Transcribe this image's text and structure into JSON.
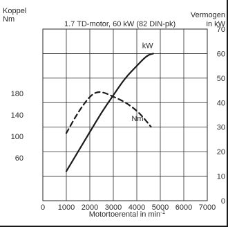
{
  "chart_data": {
    "type": "line",
    "title": "1.7 TD-motor, 60 kW (82 DIN-pk)",
    "left_axis_title": "Koppel",
    "left_axis_unit": "Nm",
    "right_axis_title": "Vermogen",
    "right_axis_unit": "in kW",
    "xlabel": "Motortoerental in min",
    "xlabel_superscript": "-1",
    "xlim": [
      0,
      7000
    ],
    "x_ticks": [
      "0",
      "1000",
      "2000",
      "3000",
      "4000",
      "5000",
      "6000",
      "7000"
    ],
    "y_left_lim": [
      -20,
      300
    ],
    "y_left_ticks": [
      "60",
      "100",
      "140",
      "180"
    ],
    "y_right_lim": [
      0,
      70
    ],
    "y_right_ticks": [
      "0",
      "10",
      "20",
      "30",
      "40",
      "50",
      "60",
      "70"
    ],
    "grid": true,
    "series": [
      {
        "name": "kW",
        "axis": "right",
        "style": "solid",
        "color": "#1a1a1a",
        "x": [
          1000,
          1500,
          2000,
          2500,
          3000,
          3500,
          4000,
          4300,
          4500,
          4700
        ],
        "y": [
          12,
          20,
          28,
          36,
          43,
          50,
          55,
          58,
          59.5,
          60
        ]
      },
      {
        "name": "Nm",
        "axis": "left",
        "style": "dashed",
        "color": "#1a1a1a",
        "x": [
          1000,
          1500,
          2000,
          2300,
          2600,
          3000,
          3500,
          4000,
          4300,
          4600
        ],
        "y": [
          106,
          145,
          175,
          183,
          182,
          174,
          164,
          148,
          134,
          118
        ]
      }
    ]
  }
}
